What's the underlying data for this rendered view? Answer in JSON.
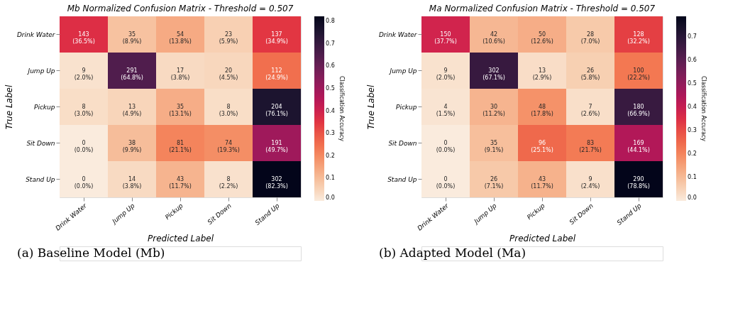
{
  "chart_data": [
    {
      "type": "heatmap",
      "title": "Mb Normalized Confusion Matrix - Threshold = 0.507",
      "xlabel": "Predicted Label",
      "ylabel": "True Label",
      "clabel": "Classification Accuracy",
      "categories": [
        "Drink Water",
        "Jump Up",
        "Pickup",
        "Sit Down",
        "Stand Up"
      ],
      "y_categories": [
        "Drink Water",
        "Jump Up",
        "Pickup",
        "Sit Down",
        "Stand Up"
      ],
      "cells": [
        [
          0.365,
          0.089,
          0.138,
          0.059,
          0.349
        ],
        [
          0.02,
          0.648,
          0.038,
          0.045,
          0.249
        ],
        [
          0.03,
          0.049,
          0.131,
          0.03,
          0.761
        ],
        [
          0.0,
          0.099,
          0.211,
          0.193,
          0.497
        ],
        [
          0.0,
          0.038,
          0.117,
          0.022,
          0.823
        ]
      ],
      "cell_labels": [
        [
          "143\n(36.5%)",
          "35\n(8.9%)",
          "54\n(13.8%)",
          "23\n(5.9%)",
          "137\n(34.9%)"
        ],
        [
          "9\n(2.0%)",
          "291\n(64.8%)",
          "17\n(3.8%)",
          "20\n(4.5%)",
          "112\n(24.9%)"
        ],
        [
          "8\n(3.0%)",
          "13\n(4.9%)",
          "35\n(13.1%)",
          "8\n(3.0%)",
          "204\n(76.1%)"
        ],
        [
          "0\n(0.0%)",
          "38\n(9.9%)",
          "81\n(21.1%)",
          "74\n(19.3%)",
          "191\n(49.7%)"
        ],
        [
          "0\n(0.0%)",
          "14\n(3.8%)",
          "43\n(11.7%)",
          "8\n(2.2%)",
          "302\n(82.3%)"
        ]
      ],
      "clim": [
        0,
        0.823
      ],
      "cticks": [
        {
          "value": 0,
          "label": "0.0"
        },
        {
          "value": 0.1,
          "label": "0.1"
        },
        {
          "value": 0.2,
          "label": "0.2"
        },
        {
          "value": 0.3,
          "label": "0.3"
        },
        {
          "value": 0.4,
          "label": "0.4"
        },
        {
          "value": 0.5,
          "label": "0.5"
        },
        {
          "value": 0.6,
          "label": "0.6"
        },
        {
          "value": 0.7,
          "label": "0.7"
        },
        {
          "value": 0.8,
          "label": "0.8"
        }
      ],
      "annotations": [
        "(a) Baseline Model (Mb)"
      ]
    },
    {
      "type": "heatmap",
      "title": "Ma Normalized Confusion Matrix - Threshold = 0.507",
      "xlabel": "Predicted Label",
      "ylabel": "True Label",
      "clabel": "Classification Accuracy",
      "categories": [
        "Drink Water",
        "Jump Up",
        "Pickup",
        "Sit Down",
        "Stand Up"
      ],
      "y_categories": [
        "Drink Water",
        "Jump Up",
        "Pickup",
        "Sit Down",
        "Stand Up"
      ],
      "cells": [
        [
          0.377,
          0.106,
          0.126,
          0.07,
          0.322
        ],
        [
          0.02,
          0.671,
          0.029,
          0.058,
          0.222
        ],
        [
          0.015,
          0.112,
          0.178,
          0.026,
          0.669
        ],
        [
          0.0,
          0.091,
          0.251,
          0.217,
          0.441
        ],
        [
          0.0,
          0.071,
          0.117,
          0.024,
          0.788
        ]
      ],
      "cell_labels": [
        [
          "150\n(37.7%)",
          "42\n(10.6%)",
          "50\n(12.6%)",
          "28\n(7.0%)",
          "128\n(32.2%)"
        ],
        [
          "9\n(2.0%)",
          "302\n(67.1%)",
          "13\n(2.9%)",
          "26\n(5.8%)",
          "100\n(22.2%)"
        ],
        [
          "4\n(1.5%)",
          "30\n(11.2%)",
          "48\n(17.8%)",
          "7\n(2.6%)",
          "180\n(66.9%)"
        ],
        [
          "0\n(0.0%)",
          "35\n(9.1%)",
          "96\n(25.1%)",
          "83\n(21.7%)",
          "169\n(44.1%)"
        ],
        [
          "0\n(0.0%)",
          "26\n(7.1%)",
          "43\n(11.7%)",
          "9\n(2.4%)",
          "290\n(78.8%)"
        ]
      ],
      "clim": [
        0,
        0.788
      ],
      "cticks": [
        {
          "value": 0,
          "label": "0.0"
        },
        {
          "value": 0.1,
          "label": "0.1"
        },
        {
          "value": 0.2,
          "label": "0.2"
        },
        {
          "value": 0.3,
          "label": "0.3"
        },
        {
          "value": 0.4,
          "label": "0.4"
        },
        {
          "value": 0.5,
          "label": "0.5"
        },
        {
          "value": 0.6,
          "label": "0.6"
        },
        {
          "value": 0.7,
          "label": "0.7"
        }
      ],
      "annotations": [
        "(b) Adapted Model (Ma)"
      ]
    }
  ]
}
